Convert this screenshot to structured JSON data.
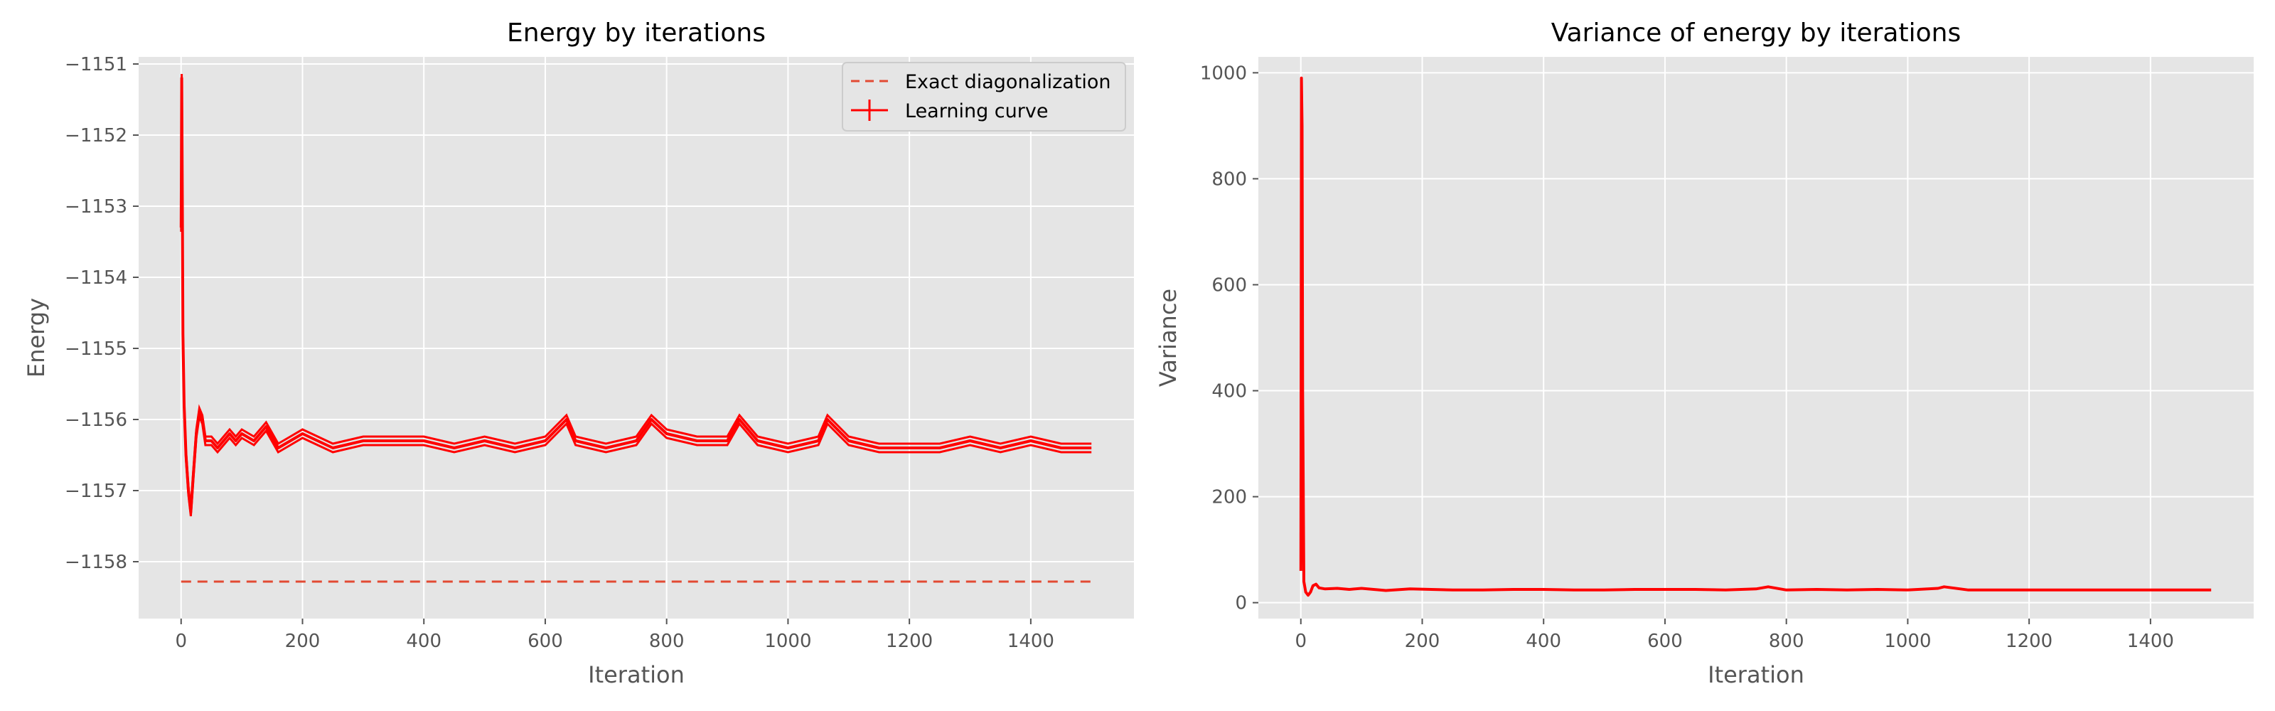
{
  "colors": {
    "axes_bg": "#e5e5e5",
    "grid": "#ffffff",
    "tick_text": "#555555",
    "series": "#ff0000",
    "exact": "#e24a33"
  },
  "chart_data": [
    {
      "type": "line",
      "title": "Energy by iterations",
      "xlabel": "Iteration",
      "ylabel": "Energy",
      "xlim": [
        -70,
        1570
      ],
      "ylim": [
        -1158.8,
        -1150.9
      ],
      "xticks": [
        0,
        200,
        400,
        600,
        800,
        1000,
        1200,
        1400
      ],
      "xtick_labels": [
        "0",
        "200",
        "400",
        "600",
        "800",
        "1000",
        "1200",
        "1400"
      ],
      "yticks": [
        -1158,
        -1157,
        -1156,
        -1155,
        -1154,
        -1153,
        -1152,
        -1151
      ],
      "ytick_labels": [
        "−1158",
        "−1157",
        "−1156",
        "−1155",
        "−1154",
        "−1153",
        "−1152",
        "−1151"
      ],
      "grid": true,
      "legend": "top-right",
      "series": [
        {
          "name": "Exact diagonalization",
          "style": "dashed",
          "x": [
            0,
            1500
          ],
          "y": [
            -1158.28,
            -1158.28
          ]
        },
        {
          "name": "Learning curve",
          "style": "solid-errorbar",
          "x": [
            0,
            1,
            2,
            3,
            5,
            8,
            12,
            16,
            20,
            25,
            30,
            35,
            40,
            50,
            60,
            70,
            80,
            90,
            100,
            120,
            140,
            160,
            180,
            200,
            250,
            300,
            350,
            400,
            450,
            500,
            550,
            600,
            635,
            650,
            700,
            750,
            775,
            800,
            850,
            900,
            920,
            950,
            1000,
            1050,
            1065,
            1100,
            1150,
            1200,
            1250,
            1300,
            1350,
            1400,
            1450,
            1500
          ],
          "y": [
            -1153.3,
            -1151.2,
            -1153.0,
            -1154.8,
            -1155.8,
            -1156.5,
            -1157.0,
            -1157.3,
            -1156.8,
            -1156.2,
            -1155.9,
            -1156.0,
            -1156.3,
            -1156.3,
            -1156.4,
            -1156.3,
            -1156.2,
            -1156.3,
            -1156.2,
            -1156.3,
            -1156.1,
            -1156.4,
            -1156.3,
            -1156.2,
            -1156.4,
            -1156.3,
            -1156.3,
            -1156.3,
            -1156.4,
            -1156.3,
            -1156.4,
            -1156.3,
            -1156.0,
            -1156.3,
            -1156.4,
            -1156.3,
            -1156.0,
            -1156.2,
            -1156.3,
            -1156.3,
            -1156.0,
            -1156.3,
            -1156.4,
            -1156.3,
            -1156.0,
            -1156.3,
            -1156.4,
            -1156.4,
            -1156.4,
            -1156.3,
            -1156.4,
            -1156.3,
            -1156.4,
            -1156.4
          ]
        }
      ]
    },
    {
      "type": "line",
      "title": "Variance of energy by iterations",
      "xlabel": "Iteration",
      "ylabel": "Variance",
      "xlim": [
        -70,
        1570
      ],
      "ylim": [
        -30,
        1030
      ],
      "xticks": [
        0,
        200,
        400,
        600,
        800,
        1000,
        1200,
        1400
      ],
      "xtick_labels": [
        "0",
        "200",
        "400",
        "600",
        "800",
        "1000",
        "1200",
        "1400"
      ],
      "yticks": [
        0,
        200,
        400,
        600,
        800,
        1000
      ],
      "ytick_labels": [
        "0",
        "200",
        "400",
        "600",
        "800",
        "1000"
      ],
      "grid": true,
      "series": [
        {
          "style": "solid",
          "x": [
            0,
            1,
            2,
            3,
            5,
            8,
            12,
            16,
            20,
            25,
            30,
            40,
            60,
            80,
            100,
            140,
            180,
            250,
            300,
            350,
            400,
            450,
            500,
            550,
            600,
            650,
            700,
            750,
            770,
            800,
            850,
            900,
            950,
            1000,
            1050,
            1060,
            1100,
            1200,
            1300,
            1400,
            1500
          ],
          "y": [
            60,
            990,
            900,
            400,
            40,
            20,
            14,
            20,
            32,
            35,
            28,
            26,
            27,
            25,
            27,
            23,
            26,
            24,
            24,
            25,
            25,
            24,
            24,
            25,
            25,
            25,
            24,
            26,
            30,
            24,
            25,
            24,
            25,
            24,
            27,
            30,
            24,
            24,
            24,
            24,
            24
          ]
        }
      ]
    }
  ]
}
